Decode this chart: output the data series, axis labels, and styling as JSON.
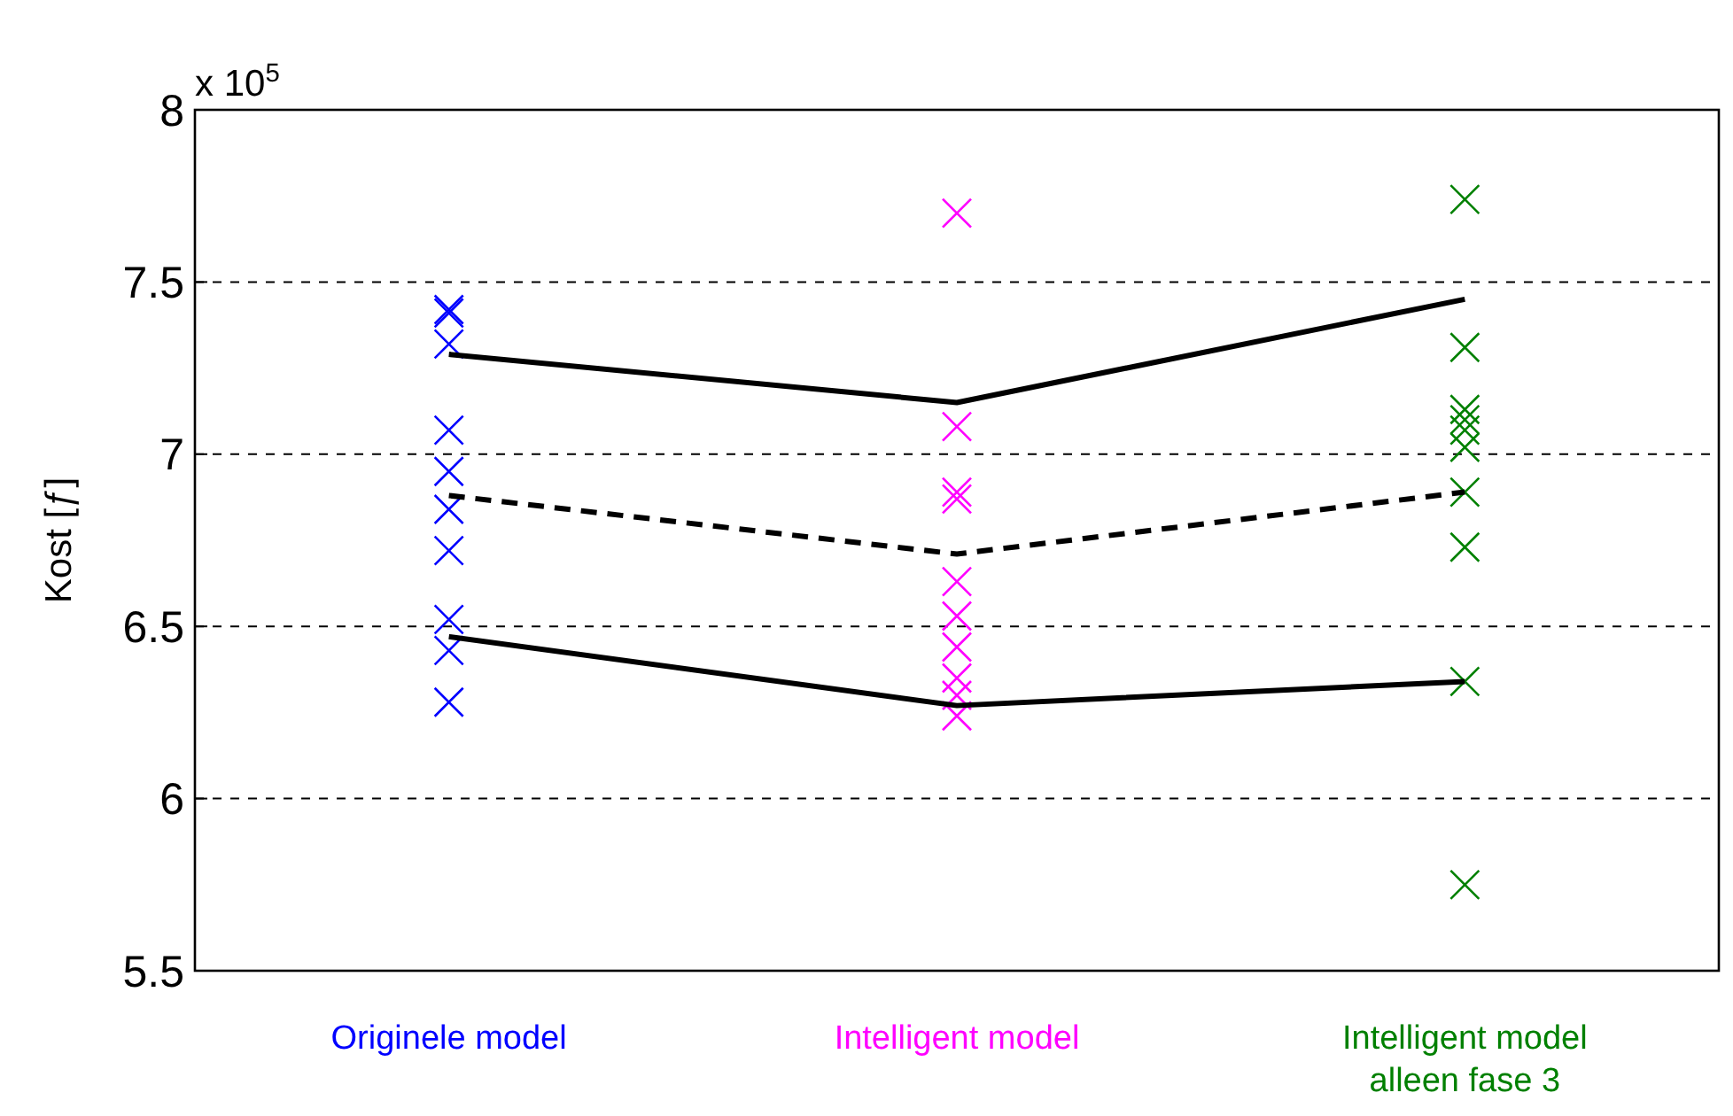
{
  "chart_data": {
    "type": "scatter",
    "ylabel": "Kost [ƒ]",
    "annotations": [
      "x 10$^{5}$"
    ],
    "categories": [
      "Originele model",
      "Intelligent model",
      "Intelligent model\nalleen fase 3"
    ],
    "ylim": [
      5.5,
      8
    ],
    "yticks": [
      5.5,
      6,
      6.5,
      7,
      7.5,
      8
    ],
    "grid": "y",
    "series": [
      {
        "color": "#0000ff",
        "marker": "cross",
        "x": [
          "Originele model",
          "Originele model",
          "Originele model",
          "Originele model",
          "Originele model",
          "Originele model",
          "Originele model",
          "Originele model",
          "Originele model",
          "Originele model"
        ],
        "values": [
          7.42,
          7.41,
          7.32,
          7.07,
          6.95,
          6.84,
          6.72,
          6.52,
          6.43,
          6.28
        ]
      },
      {
        "color": "#ff00ff",
        "marker": "cross",
        "x": [
          "Intelligent model",
          "Intelligent model",
          "Intelligent model",
          "Intelligent model",
          "Intelligent model",
          "Intelligent model",
          "Intelligent model",
          "Intelligent model",
          "Intelligent model",
          "Intelligent model"
        ],
        "values": [
          7.7,
          7.08,
          6.89,
          6.87,
          6.63,
          6.53,
          6.44,
          6.35,
          6.3,
          6.24
        ]
      },
      {
        "color": "#008000",
        "marker": "cross",
        "x": [
          "Intelligent model\nalleen fase 3",
          "Intelligent model\nalleen fase 3",
          "Intelligent model\nalleen fase 3",
          "Intelligent model\nalleen fase 3",
          "Intelligent model\nalleen fase 3",
          "Intelligent model\nalleen fase 3",
          "Intelligent model\nalleen fase 3",
          "Intelligent model\nalleen fase 3",
          "Intelligent model\nalleen fase 3",
          "Intelligent model\nalleen fase 3"
        ],
        "values": [
          7.74,
          7.31,
          7.13,
          7.1,
          7.07,
          7.02,
          6.89,
          6.73,
          6.34,
          5.75
        ]
      },
      {
        "type": "line",
        "color": "#000000",
        "line_style": "solid",
        "marker": "none",
        "values": [
          7.29,
          7.15,
          7.45
        ]
      },
      {
        "type": "line",
        "color": "#000000",
        "line_style": "dashed",
        "marker": "none",
        "values": [
          6.88,
          6.71,
          6.89
        ]
      },
      {
        "type": "line",
        "color": "#000000",
        "line_style": "solid",
        "marker": "none",
        "values": [
          6.47,
          6.27,
          6.34
        ]
      }
    ]
  }
}
